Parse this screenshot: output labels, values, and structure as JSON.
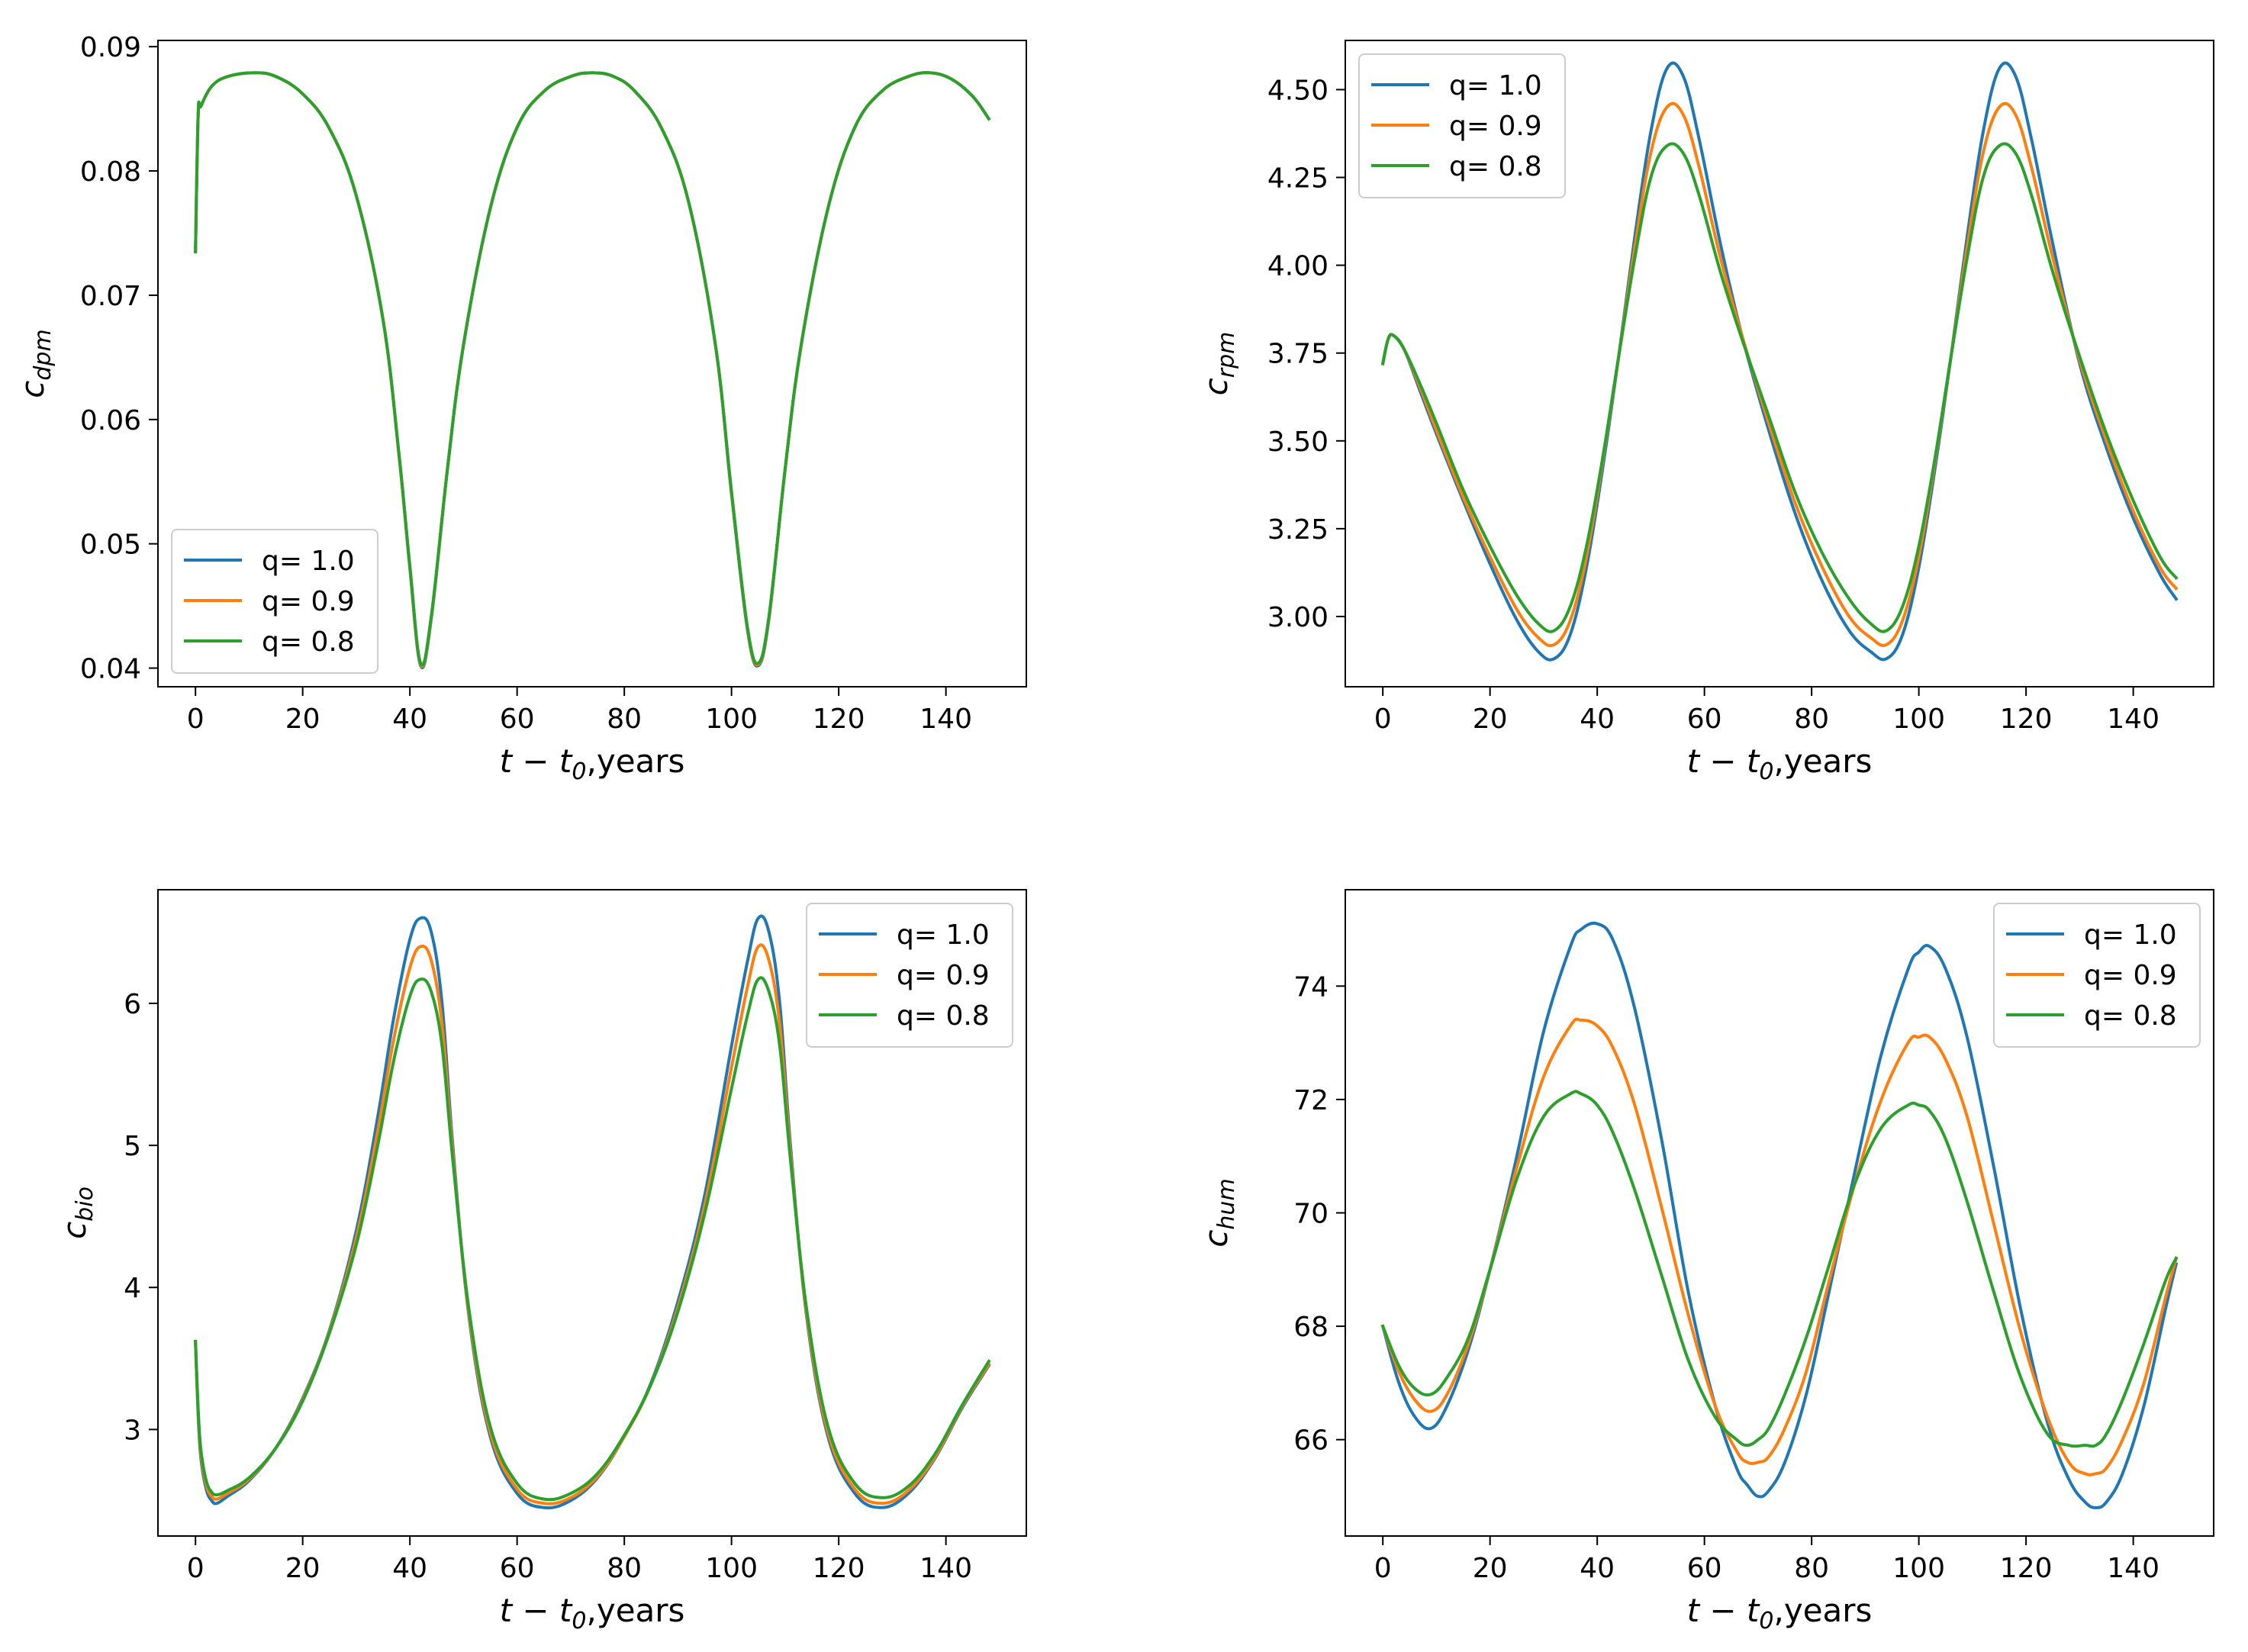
{
  "colors": {
    "q1": "#1f77b4",
    "q09": "#ff7f0e",
    "q08": "#2ca02c"
  },
  "chart_data": [
    {
      "type": "line",
      "ylabel_main": "c",
      "ylabel_sub": "dpm",
      "xlabel_main": "t − t",
      "xlabel_sub": "0",
      "xlabel_tail": ",years",
      "xlim": [
        -7,
        155
      ],
      "ylim": [
        0.0385,
        0.0905
      ],
      "xticks": [
        0,
        20,
        40,
        60,
        80,
        100,
        120,
        140
      ],
      "xtick_labels": [
        "0",
        "20",
        "40",
        "60",
        "80",
        "100",
        "120",
        "140"
      ],
      "yticks": [
        0.04,
        0.05,
        0.06,
        0.07,
        0.08,
        0.09
      ],
      "ytick_labels": [
        "0.04",
        "0.05",
        "0.06",
        "0.07",
        "0.08",
        "0.09"
      ],
      "legend": "lower-left",
      "x": [
        0,
        0.5,
        1,
        3,
        6,
        11,
        15,
        20,
        25,
        30,
        35,
        38,
        40,
        42,
        44,
        47,
        50,
        55,
        60,
        65,
        70,
        74,
        78,
        82,
        87,
        92,
        97,
        100,
        103,
        105,
        107,
        110,
        113,
        118,
        123,
        128,
        133,
        137,
        141,
        145,
        148
      ],
      "series": [
        {
          "name": "q= 1.0",
          "values": [
            0.0735,
            0.0845,
            0.0852,
            0.0868,
            0.0876,
            0.0879,
            0.0876,
            0.0862,
            0.0834,
            0.078,
            0.068,
            0.057,
            0.048,
            0.0402,
            0.044,
            0.056,
            0.066,
            0.077,
            0.0835,
            0.0864,
            0.0876,
            0.0879,
            0.0876,
            0.0864,
            0.0834,
            0.0775,
            0.066,
            0.054,
            0.043,
            0.0402,
            0.044,
            0.056,
            0.066,
            0.077,
            0.0835,
            0.0864,
            0.0876,
            0.0879,
            0.0874,
            0.086,
            0.0842
          ]
        },
        {
          "name": "q= 0.9",
          "values": [
            0.0735,
            0.0845,
            0.0852,
            0.0868,
            0.0876,
            0.0879,
            0.0876,
            0.0862,
            0.0834,
            0.078,
            0.068,
            0.057,
            0.0481,
            0.0403,
            0.0441,
            0.056,
            0.066,
            0.077,
            0.0835,
            0.0864,
            0.0876,
            0.0879,
            0.0876,
            0.0864,
            0.0834,
            0.0775,
            0.066,
            0.0541,
            0.0431,
            0.0403,
            0.0441,
            0.056,
            0.066,
            0.077,
            0.0835,
            0.0864,
            0.0876,
            0.0879,
            0.0874,
            0.086,
            0.0842
          ]
        },
        {
          "name": "q= 0.8",
          "values": [
            0.0735,
            0.0845,
            0.0852,
            0.0868,
            0.0876,
            0.0879,
            0.0876,
            0.0862,
            0.0834,
            0.078,
            0.068,
            0.0571,
            0.0482,
            0.0404,
            0.0442,
            0.056,
            0.066,
            0.077,
            0.0835,
            0.0864,
            0.0876,
            0.0879,
            0.0876,
            0.0864,
            0.0834,
            0.0775,
            0.066,
            0.0542,
            0.0432,
            0.0404,
            0.0442,
            0.056,
            0.066,
            0.077,
            0.0835,
            0.0864,
            0.0876,
            0.0879,
            0.0874,
            0.086,
            0.0842
          ]
        }
      ]
    },
    {
      "type": "line",
      "ylabel_main": "c",
      "ylabel_sub": "rpm",
      "xlabel_main": "t − t",
      "xlabel_sub": "0",
      "xlabel_tail": ",years",
      "xlim": [
        -7,
        155
      ],
      "ylim": [
        2.8,
        4.64
      ],
      "xticks": [
        0,
        20,
        40,
        60,
        80,
        100,
        120,
        140
      ],
      "xtick_labels": [
        "0",
        "20",
        "40",
        "60",
        "80",
        "100",
        "120",
        "140"
      ],
      "yticks": [
        3.0,
        3.25,
        3.5,
        3.75,
        4.0,
        4.25,
        4.5
      ],
      "ytick_labels": [
        "3.00",
        "3.25",
        "3.50",
        "3.75",
        "4.00",
        "4.25",
        "4.50"
      ],
      "legend": "top-left",
      "x": [
        0,
        1,
        2,
        4,
        7,
        10,
        15,
        20,
        25,
        29,
        32,
        35,
        38,
        41,
        44,
        47,
        50,
        53,
        56,
        59,
        63,
        67,
        72,
        77,
        82,
        87,
        91,
        94,
        97,
        100,
        103,
        106,
        109,
        112,
        115,
        118,
        121,
        125,
        130,
        135,
        140,
        145,
        148
      ],
      "series": [
        {
          "name": "q= 1.0",
          "values": [
            3.72,
            3.79,
            3.8,
            3.76,
            3.64,
            3.52,
            3.33,
            3.15,
            2.99,
            2.9,
            2.88,
            2.95,
            3.14,
            3.42,
            3.74,
            4.08,
            4.38,
            4.56,
            4.54,
            4.36,
            4.06,
            3.8,
            3.53,
            3.29,
            3.1,
            2.96,
            2.9,
            2.88,
            2.95,
            3.14,
            3.42,
            3.74,
            4.08,
            4.38,
            4.56,
            4.54,
            4.36,
            4.06,
            3.72,
            3.48,
            3.28,
            3.12,
            3.05
          ]
        },
        {
          "name": "q= 0.9",
          "values": [
            3.72,
            3.79,
            3.8,
            3.76,
            3.65,
            3.53,
            3.34,
            3.17,
            3.02,
            2.94,
            2.92,
            2.99,
            3.17,
            3.44,
            3.74,
            4.05,
            4.32,
            4.45,
            4.43,
            4.28,
            4.02,
            3.8,
            3.55,
            3.32,
            3.14,
            3.0,
            2.94,
            2.92,
            2.99,
            3.17,
            3.44,
            3.74,
            4.05,
            4.32,
            4.45,
            4.43,
            4.28,
            4.02,
            3.73,
            3.5,
            3.3,
            3.14,
            3.08
          ]
        },
        {
          "name": "q= 0.8",
          "values": [
            3.72,
            3.79,
            3.8,
            3.76,
            3.66,
            3.55,
            3.36,
            3.2,
            3.06,
            2.98,
            2.96,
            3.03,
            3.2,
            3.45,
            3.74,
            4.02,
            4.25,
            4.34,
            4.32,
            4.2,
            3.98,
            3.79,
            3.57,
            3.35,
            3.18,
            3.05,
            2.98,
            2.96,
            3.03,
            3.2,
            3.45,
            3.74,
            4.02,
            4.25,
            4.34,
            4.32,
            4.2,
            3.98,
            3.74,
            3.52,
            3.33,
            3.17,
            3.11
          ]
        }
      ]
    },
    {
      "type": "line",
      "ylabel_main": "c",
      "ylabel_sub": "bio",
      "xlabel_main": "t − t",
      "xlabel_sub": "0",
      "xlabel_tail": ",years",
      "xlim": [
        -7,
        155
      ],
      "ylim": [
        2.25,
        6.8
      ],
      "xticks": [
        0,
        20,
        40,
        60,
        80,
        100,
        120,
        140
      ],
      "xtick_labels": [
        "0",
        "20",
        "40",
        "60",
        "80",
        "100",
        "120",
        "140"
      ],
      "yticks": [
        3,
        4,
        5,
        6
      ],
      "ytick_labels": [
        "3",
        "4",
        "5",
        "6"
      ],
      "legend": "top-right",
      "x": [
        0,
        0.5,
        1,
        2,
        3,
        4,
        6,
        10,
        15,
        20,
        25,
        30,
        34,
        37,
        40,
        42,
        44,
        46,
        48,
        51,
        55,
        60,
        65,
        70,
        75,
        80,
        85,
        90,
        95,
        100,
        103,
        105,
        107,
        109,
        111,
        114,
        118,
        123,
        128,
        133,
        138,
        143,
        148
      ],
      "series": [
        {
          "name": "q= 1.0",
          "values": [
            3.62,
            3.1,
            2.8,
            2.58,
            2.5,
            2.48,
            2.53,
            2.64,
            2.87,
            3.22,
            3.7,
            4.4,
            5.2,
            5.9,
            6.45,
            6.6,
            6.5,
            6.0,
            5.0,
            3.8,
            2.95,
            2.55,
            2.45,
            2.5,
            2.66,
            2.95,
            3.33,
            3.9,
            4.65,
            5.7,
            6.3,
            6.6,
            6.5,
            6.0,
            5.0,
            3.8,
            2.95,
            2.55,
            2.45,
            2.55,
            2.8,
            3.15,
            3.45
          ]
        },
        {
          "name": "q= 0.9",
          "values": [
            3.62,
            3.12,
            2.83,
            2.61,
            2.53,
            2.51,
            2.55,
            2.65,
            2.87,
            3.21,
            3.69,
            4.35,
            5.1,
            5.75,
            6.25,
            6.4,
            6.3,
            5.85,
            4.95,
            3.82,
            2.98,
            2.58,
            2.48,
            2.52,
            2.67,
            2.95,
            3.32,
            3.86,
            4.58,
            5.55,
            6.12,
            6.4,
            6.3,
            5.85,
            4.95,
            3.82,
            2.98,
            2.58,
            2.48,
            2.57,
            2.81,
            3.16,
            3.46
          ]
        },
        {
          "name": "q= 0.8",
          "values": [
            3.62,
            3.14,
            2.86,
            2.64,
            2.56,
            2.54,
            2.57,
            2.66,
            2.87,
            3.2,
            3.68,
            4.3,
            5.0,
            5.6,
            6.05,
            6.17,
            6.08,
            5.7,
            4.9,
            3.85,
            3.02,
            2.62,
            2.51,
            2.55,
            2.69,
            2.96,
            3.32,
            3.83,
            4.52,
            5.4,
            5.92,
            6.17,
            6.08,
            5.7,
            4.9,
            3.85,
            3.02,
            2.62,
            2.52,
            2.6,
            2.83,
            3.17,
            3.48
          ]
        }
      ]
    },
    {
      "type": "line",
      "ylabel_main": "c",
      "ylabel_sub": "hum",
      "xlabel_main": "t − t",
      "xlabel_sub": "0",
      "xlabel_tail": ",years",
      "xlim": [
        -7,
        155
      ],
      "ylim": [
        64.3,
        75.7
      ],
      "xticks": [
        0,
        20,
        40,
        60,
        80,
        100,
        120,
        140
      ],
      "xtick_labels": [
        "0",
        "20",
        "40",
        "60",
        "80",
        "100",
        "120",
        "140"
      ],
      "yticks": [
        66,
        68,
        70,
        72,
        74
      ],
      "ytick_labels": [
        "66",
        "68",
        "70",
        "72",
        "74"
      ],
      "legend": "top-right",
      "x": [
        0,
        3,
        6,
        9,
        12,
        16,
        20,
        25,
        30,
        35,
        37,
        40,
        43,
        47,
        52,
        57,
        62,
        66,
        68,
        70,
        72,
        75,
        79,
        83,
        88,
        93,
        98,
        100,
        102,
        105,
        109,
        114,
        119,
        124,
        128,
        131,
        133,
        135,
        138,
        142,
        146,
        148
      ],
      "series": [
        {
          "name": "q= 1.0",
          "values": [
            68.0,
            67.0,
            66.4,
            66.2,
            66.6,
            67.6,
            69.0,
            71.0,
            73.2,
            74.7,
            75.0,
            75.1,
            74.8,
            73.6,
            71.3,
            68.6,
            66.6,
            65.5,
            65.2,
            65.0,
            65.1,
            65.6,
            66.8,
            68.5,
            70.7,
            72.8,
            74.3,
            74.6,
            74.7,
            74.3,
            73.1,
            70.8,
            68.3,
            66.3,
            65.3,
            64.9,
            64.8,
            64.9,
            65.4,
            66.6,
            68.3,
            69.1
          ]
        },
        {
          "name": "q= 0.9",
          "values": [
            68.0,
            67.2,
            66.7,
            66.5,
            66.8,
            67.7,
            69.0,
            70.8,
            72.4,
            73.3,
            73.4,
            73.3,
            72.9,
            71.9,
            70.1,
            68.2,
            66.6,
            65.8,
            65.6,
            65.6,
            65.7,
            66.2,
            67.2,
            68.7,
            70.5,
            72.0,
            73.0,
            73.1,
            73.1,
            72.7,
            71.7,
            69.8,
            67.9,
            66.4,
            65.6,
            65.4,
            65.4,
            65.5,
            66.0,
            67.0,
            68.5,
            69.2
          ]
        },
        {
          "name": "q= 0.8",
          "values": [
            68.0,
            67.3,
            66.9,
            66.8,
            67.1,
            67.8,
            69.0,
            70.6,
            71.7,
            72.1,
            72.1,
            71.9,
            71.4,
            70.4,
            68.9,
            67.4,
            66.4,
            66.0,
            65.9,
            66.0,
            66.2,
            66.8,
            67.8,
            69.0,
            70.5,
            71.5,
            71.9,
            71.9,
            71.8,
            71.3,
            70.2,
            68.6,
            67.1,
            66.1,
            65.9,
            65.9,
            65.9,
            66.1,
            66.7,
            67.7,
            68.8,
            69.2
          ]
        }
      ]
    }
  ]
}
